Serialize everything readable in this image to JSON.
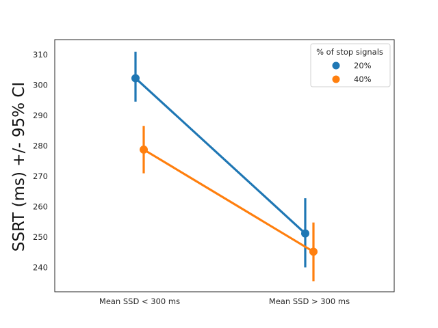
{
  "chart_data": {
    "type": "line",
    "title": "",
    "xlabel": "",
    "ylabel": "SSRT (ms) +/- 95% CI",
    "categories": [
      "Mean SSD < 300 ms",
      "Mean SSD > 300 ms"
    ],
    "ylim": [
      232,
      315
    ],
    "yticks": [
      240,
      250,
      260,
      270,
      280,
      290,
      300,
      310
    ],
    "grid": false,
    "legend": {
      "title": "% of stop signals",
      "placement": "top-right"
    },
    "series": [
      {
        "name": "20%",
        "color": "#1f77b4",
        "values": [
          302.3,
          251.2
        ],
        "ci_low": [
          294.6,
          240.0
        ],
        "ci_high": [
          311.0,
          262.8
        ]
      },
      {
        "name": "40%",
        "color": "#ff7f0e",
        "values": [
          278.8,
          245.2
        ],
        "ci_low": [
          271.0,
          235.5
        ],
        "ci_high": [
          286.6,
          254.8
        ]
      }
    ]
  }
}
